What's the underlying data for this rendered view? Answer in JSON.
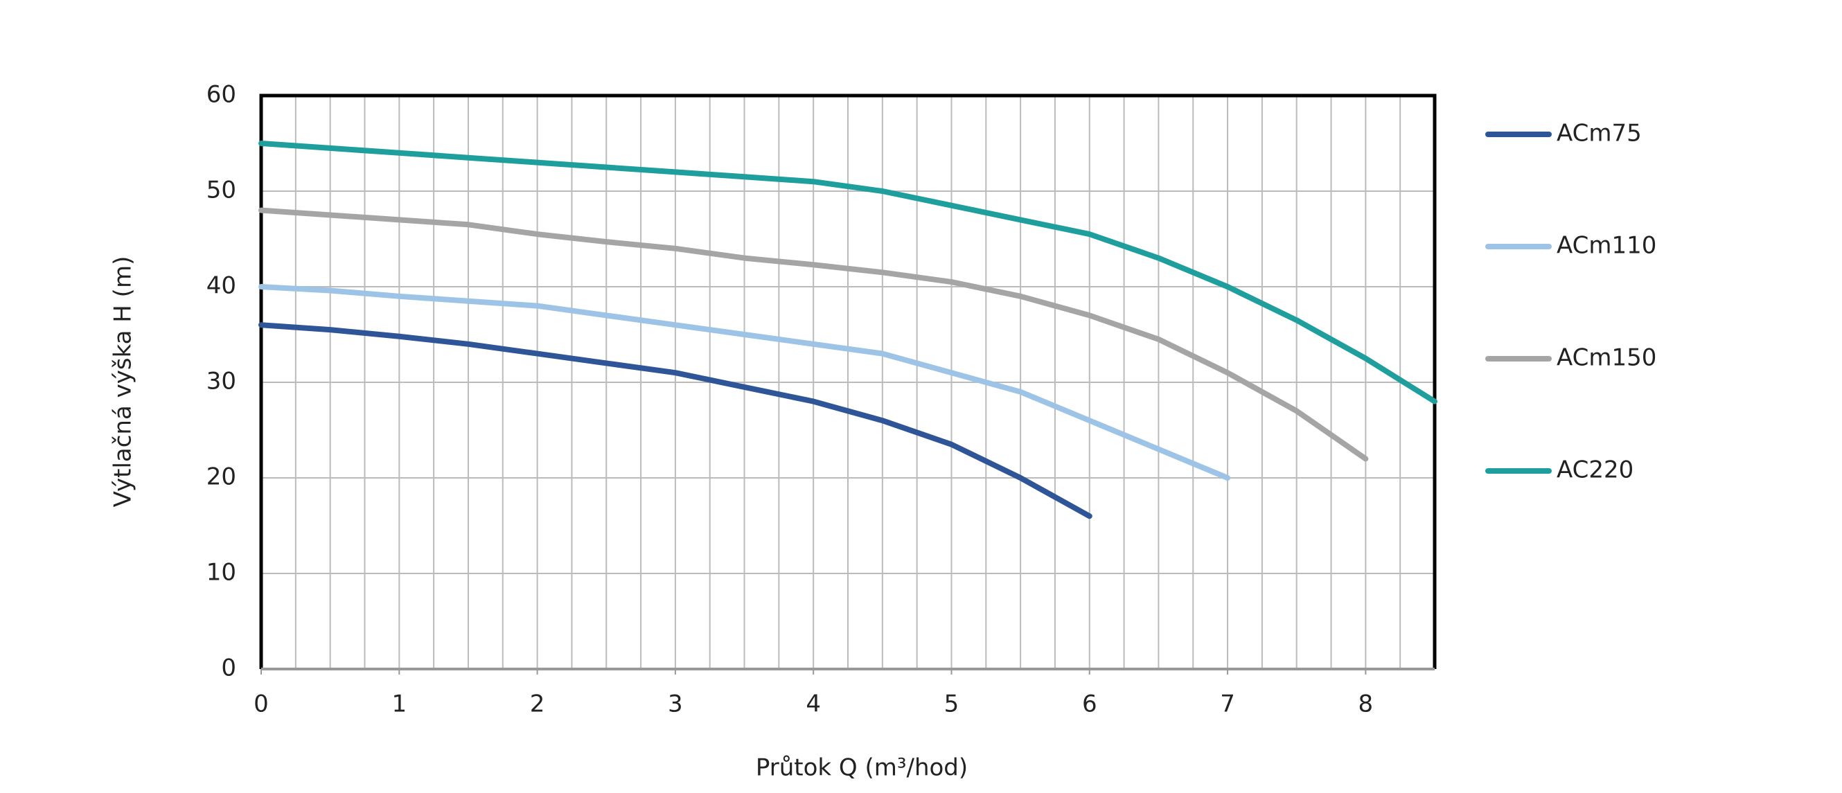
{
  "chart_data": {
    "type": "line",
    "x_label": "Průtok Q (m³/hod)",
    "y_label": "Výtlačná výška H (m)",
    "x": [
      0,
      0.5,
      1,
      1.5,
      2,
      2.5,
      3,
      3.5,
      4,
      4.5,
      5,
      5.5,
      6,
      6.5,
      7,
      7.5,
      8,
      8.5
    ],
    "series": [
      {
        "name": "ACm75",
        "color": "#2e5597",
        "values": [
          36,
          35.5,
          34.8,
          34,
          33,
          32,
          31,
          29.5,
          28,
          26,
          23.5,
          20,
          16,
          null,
          null,
          null,
          null,
          null
        ]
      },
      {
        "name": "ACm110",
        "color": "#9dc3e6",
        "values": [
          40,
          39.6,
          39,
          38.5,
          38,
          37,
          36,
          35,
          34,
          33,
          31,
          29,
          26,
          23,
          20,
          null,
          null,
          null
        ]
      },
      {
        "name": "ACm150",
        "color": "#a5a5a5",
        "values": [
          48,
          47.5,
          47,
          46.5,
          45.5,
          44.7,
          44,
          43,
          42.3,
          41.5,
          40.5,
          39,
          37,
          34.5,
          31,
          27,
          22,
          null
        ]
      },
      {
        "name": "AC220",
        "color": "#1f9e9e",
        "values": [
          55,
          54.5,
          54,
          53.5,
          53,
          52.5,
          52,
          51.5,
          51,
          50,
          48.5,
          47,
          45.5,
          43,
          40,
          36.5,
          32.5,
          28
        ]
      }
    ],
    "xlim": [
      0,
      8.5
    ],
    "xticks": [
      0,
      1,
      2,
      3,
      4,
      5,
      6,
      7,
      8
    ],
    "ylim": [
      0,
      60
    ],
    "yticks": [
      0,
      10,
      20,
      30,
      40,
      50,
      60
    ],
    "grid": true,
    "x_minor_grid_step": 0.25,
    "legend": "right"
  }
}
